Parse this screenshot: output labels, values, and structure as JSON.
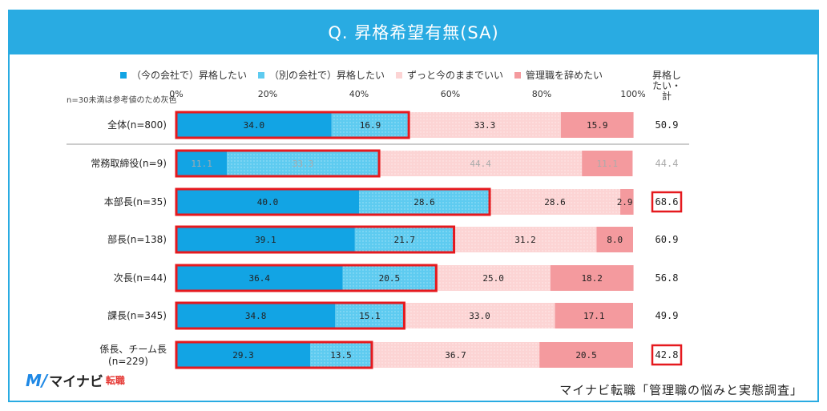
{
  "title": "Q. 昇格希望有無(SA)",
  "note": "n=30未満は参考値のため灰色",
  "total_header": "昇格したい・計",
  "source": "マイナビ転職「管理職の悩みと実態調査」",
  "logo": {
    "mark": "M/",
    "text": "マイナビ",
    "sub": "転職"
  },
  "colors": {
    "seg1": "#12a4e4",
    "seg2": "#5ecbf0",
    "seg3": "#fcd4d4",
    "seg4": "#f49a9e",
    "highlight": "#e5191e",
    "header": "#29abe2"
  },
  "chart_data": {
    "type": "bar",
    "orientation": "horizontal",
    "stacked": true,
    "xlim": [
      0,
      100
    ],
    "x_ticks": [
      "0%",
      "20%",
      "40%",
      "60%",
      "80%",
      "100%"
    ],
    "series": [
      {
        "name": "（今の会社で）昇格したい"
      },
      {
        "name": "（別の会社で）昇格したい"
      },
      {
        "name": "ずっと今のままでいい"
      },
      {
        "name": "管理職を辞めたい"
      }
    ],
    "rows": [
      {
        "label": "全体(n=800)",
        "values": [
          34.0,
          16.9,
          33.3,
          15.9
        ],
        "total": "50.9",
        "grey": false,
        "total_highlight": false
      },
      {
        "label": "常務取締役(n=9)",
        "values": [
          11.1,
          33.3,
          44.4,
          11.1
        ],
        "total": "44.4",
        "grey": true,
        "total_highlight": false
      },
      {
        "label": "本部長(n=35)",
        "values": [
          40.0,
          28.6,
          28.6,
          2.9
        ],
        "total": "68.6",
        "grey": false,
        "total_highlight": true
      },
      {
        "label": "部長(n=138)",
        "values": [
          39.1,
          21.7,
          31.2,
          8.0
        ],
        "total": "60.9",
        "grey": false,
        "total_highlight": false
      },
      {
        "label": "次長(n=44)",
        "values": [
          36.4,
          20.5,
          25.0,
          18.2
        ],
        "total": "56.8",
        "grey": false,
        "total_highlight": false
      },
      {
        "label": "課長(n=345)",
        "values": [
          34.8,
          15.1,
          33.0,
          17.1
        ],
        "total": "49.9",
        "grey": false,
        "total_highlight": false
      },
      {
        "label": "係長、チーム長\n(n=229)",
        "values": [
          29.3,
          13.5,
          36.7,
          20.5
        ],
        "total": "42.8",
        "grey": false,
        "total_highlight": true
      }
    ]
  }
}
